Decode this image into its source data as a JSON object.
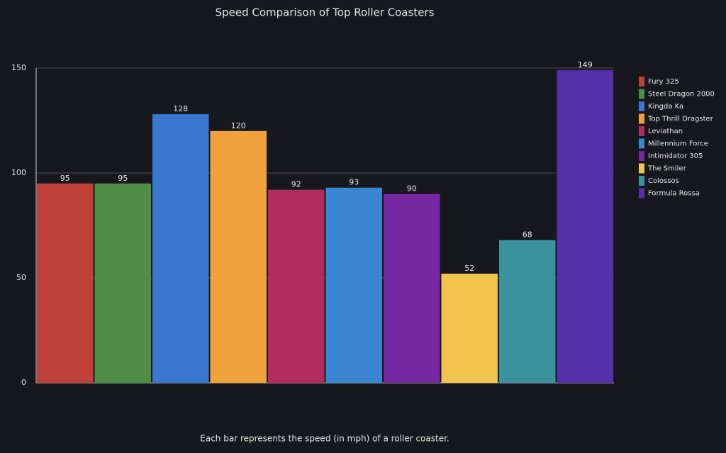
{
  "chart_data": {
    "type": "bar",
    "title": "Speed Comparison of Top Roller Coasters",
    "caption": "Each bar represents the speed (in mph) of a roller coaster.",
    "categories": [
      "Fury 325",
      "Steel Dragon 2000",
      "Kingda Ka",
      "Top Thrill Dragster",
      "Leviathan",
      "Millennium Force",
      "Intimidator 305",
      "The Smiler",
      "Colossos",
      "Formula Rossa"
    ],
    "values": [
      95,
      95,
      128,
      120,
      92,
      93,
      90,
      52,
      68,
      149
    ],
    "colors": [
      "#c0403a",
      "#4f8c46",
      "#3a78d0",
      "#f0a23c",
      "#b22d5c",
      "#3a86d2",
      "#7628a0",
      "#f2c44e",
      "#3b929f",
      "#5530a8"
    ],
    "ylim": [
      0,
      150
    ],
    "yticks": [
      0,
      50,
      100,
      150
    ],
    "grid": true,
    "legend": "right"
  }
}
